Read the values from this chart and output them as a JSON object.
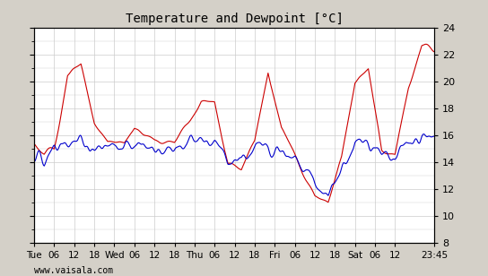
{
  "title": "Temperature and Dewpoint [°C]",
  "ylabel_right": "",
  "xlabel_bottom": "www.vaisala.com",
  "bg_color": "#d4d0c8",
  "plot_bg_color": "#ffffff",
  "grid_color": "#cccccc",
  "temp_color": "#cc0000",
  "dewp_color": "#0000cc",
  "ylim": [
    8,
    24
  ],
  "yticks": [
    8,
    10,
    12,
    14,
    16,
    18,
    20,
    22,
    24
  ],
  "xtick_labels": [
    "Tue",
    "06",
    "12",
    "18",
    "Wed",
    "06",
    "12",
    "18",
    "Thu",
    "06",
    "12",
    "18",
    "Fri",
    "06",
    "12",
    "18",
    "Sat",
    "06",
    "12",
    "23:45"
  ],
  "line_width": 0.8
}
